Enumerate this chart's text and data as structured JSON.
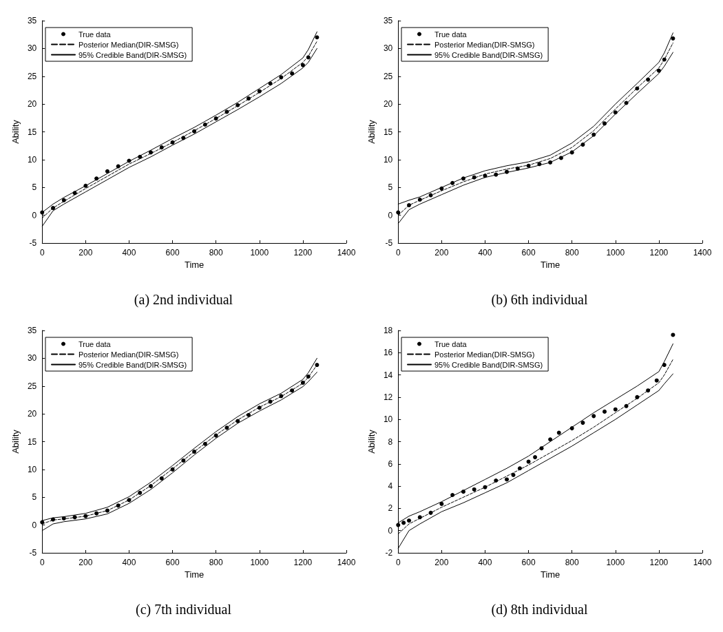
{
  "chart_data": [
    {
      "type": "line",
      "title": "(a) 2nd individual",
      "xlabel": "Time",
      "ylabel": "Ability",
      "xlim": [
        0,
        1400
      ],
      "ylim": [
        -5,
        35
      ],
      "xticks": [
        0,
        200,
        400,
        600,
        800,
        1000,
        1200,
        1400
      ],
      "yticks": [
        -5,
        0,
        5,
        10,
        15,
        20,
        25,
        30,
        35
      ],
      "grid": false,
      "legend": "top left",
      "series": [
        {
          "name": "True data",
          "type": "scatter",
          "marker": "circle",
          "color": "#000000",
          "x": [
            0,
            50,
            100,
            150,
            200,
            250,
            300,
            350,
            400,
            450,
            500,
            550,
            600,
            650,
            700,
            750,
            800,
            850,
            900,
            950,
            1000,
            1050,
            1100,
            1150,
            1200,
            1225,
            1265
          ],
          "values": [
            0.5,
            1.3,
            2.7,
            4,
            5.3,
            6.6,
            7.9,
            8.8,
            9.8,
            10.5,
            11.3,
            12.2,
            13.1,
            13.9,
            15.1,
            16.3,
            17.4,
            18.6,
            19.8,
            21,
            22.3,
            23.7,
            24.8,
            25.5,
            27,
            28.4,
            32
          ]
        },
        {
          "name": "Posterior Median(DIR-SMSG)",
          "line_style": "dashed",
          "marker": "none",
          "color": "#000000",
          "x": [
            0,
            50,
            100,
            200,
            300,
            400,
            500,
            600,
            700,
            800,
            900,
            1000,
            1100,
            1200,
            1225,
            1265
          ],
          "values": [
            -0.5,
            1.3,
            2.5,
            4.8,
            7,
            9.2,
            11.1,
            13.1,
            15.2,
            17.4,
            19.7,
            22.1,
            24.6,
            27.5,
            28.6,
            31.3
          ]
        },
        {
          "name": "95% Credible Band(DIR-SMSG)",
          "line_style": "solid",
          "marker": "none",
          "color": "#000000",
          "x": [
            0,
            50,
            100,
            200,
            300,
            400,
            500,
            600,
            700,
            800,
            900,
            1000,
            1100,
            1200,
            1225,
            1265
          ],
          "values": [
            0.5,
            2,
            3.2,
            5.3,
            7.5,
            9.7,
            11.7,
            13.8,
            15.8,
            18,
            20.3,
            22.8,
            25.3,
            28.3,
            29.8,
            33
          ]
        },
        {
          "line_style": "solid",
          "marker": "none",
          "color": "#000000",
          "x": [
            0,
            50,
            100,
            200,
            300,
            400,
            500,
            600,
            700,
            800,
            900,
            1000,
            1100,
            1200,
            1225,
            1265
          ],
          "values": [
            -2,
            0.8,
            2,
            4.2,
            6.4,
            8.6,
            10.5,
            12.6,
            14.6,
            16.8,
            19,
            21.3,
            23.7,
            26.5,
            27.5,
            30
          ]
        }
      ]
    },
    {
      "type": "line",
      "title": "(b) 6th individual",
      "xlabel": "Time",
      "ylabel": "Ability",
      "xlim": [
        0,
        1400
      ],
      "ylim": [
        -5,
        35
      ],
      "xticks": [
        0,
        200,
        400,
        600,
        800,
        1000,
        1200,
        1400
      ],
      "yticks": [
        -5,
        0,
        5,
        10,
        15,
        20,
        25,
        30,
        35
      ],
      "grid": false,
      "legend": "top left",
      "series": [
        {
          "name": "True data",
          "type": "scatter",
          "marker": "circle",
          "color": "#000000",
          "x": [
            0,
            50,
            100,
            150,
            200,
            250,
            300,
            350,
            400,
            450,
            500,
            550,
            600,
            650,
            700,
            750,
            800,
            850,
            900,
            950,
            1000,
            1050,
            1100,
            1150,
            1200,
            1225,
            1265
          ],
          "values": [
            0.5,
            1.8,
            2.8,
            3.6,
            4.8,
            5.8,
            6.6,
            6.8,
            7.1,
            7.3,
            7.8,
            8.4,
            8.9,
            9.2,
            9.5,
            10.3,
            11.3,
            12.7,
            14.5,
            16.5,
            18.5,
            20.2,
            22.8,
            24.4,
            26,
            28,
            31.8
          ]
        },
        {
          "name": "Posterior Median(DIR-SMSG)",
          "line_style": "dashed",
          "marker": "none",
          "color": "#000000",
          "x": [
            0,
            50,
            100,
            200,
            300,
            400,
            500,
            600,
            700,
            800,
            900,
            1000,
            1100,
            1200,
            1225,
            1265
          ],
          "values": [
            0,
            1.8,
            2.7,
            4.4,
            6,
            7.4,
            8.3,
            9,
            10.2,
            12.2,
            15.2,
            19.1,
            22.9,
            26.5,
            28,
            31
          ]
        },
        {
          "name": "95% Credible Band(DIR-SMSG)",
          "line_style": "solid",
          "marker": "none",
          "color": "#000000",
          "x": [
            0,
            50,
            100,
            200,
            300,
            400,
            500,
            600,
            700,
            800,
            900,
            1000,
            1100,
            1200,
            1225,
            1265
          ],
          "values": [
            2,
            2.7,
            3.3,
            5,
            6.7,
            8,
            8.9,
            9.6,
            10.8,
            13,
            16,
            20,
            23.7,
            27.5,
            29.2,
            32.8
          ]
        },
        {
          "line_style": "solid",
          "marker": "none",
          "color": "#000000",
          "x": [
            0,
            50,
            100,
            200,
            300,
            400,
            500,
            600,
            700,
            800,
            900,
            1000,
            1100,
            1200,
            1225,
            1265
          ],
          "values": [
            -1.5,
            1,
            2,
            3.7,
            5.4,
            6.8,
            7.7,
            8.5,
            9.5,
            11.4,
            14.3,
            18.2,
            21.9,
            25.5,
            26.8,
            29.3
          ]
        }
      ]
    },
    {
      "type": "line",
      "title": "(c) 7th individual",
      "xlabel": "Time",
      "ylabel": "Ability",
      "xlim": [
        0,
        1400
      ],
      "ylim": [
        -5,
        35
      ],
      "xticks": [
        0,
        200,
        400,
        600,
        800,
        1000,
        1200,
        1400
      ],
      "yticks": [
        -5,
        0,
        5,
        10,
        15,
        20,
        25,
        30,
        35
      ],
      "grid": false,
      "legend": "top left",
      "series": [
        {
          "name": "True data",
          "type": "scatter",
          "marker": "circle",
          "color": "#000000",
          "x": [
            0,
            50,
            100,
            150,
            200,
            250,
            300,
            350,
            400,
            450,
            500,
            550,
            600,
            650,
            700,
            750,
            800,
            850,
            900,
            950,
            1000,
            1050,
            1100,
            1150,
            1200,
            1225,
            1265
          ],
          "values": [
            0.5,
            1,
            1.2,
            1.4,
            1.6,
            2.1,
            2.6,
            3.5,
            4.5,
            5.8,
            7,
            8.4,
            10,
            11.6,
            13.2,
            14.6,
            16.1,
            17.5,
            18.7,
            19.8,
            21.1,
            22.2,
            23.2,
            24.2,
            25.6,
            26.7,
            28.8
          ]
        },
        {
          "name": "Posterior Median(DIR-SMSG)",
          "line_style": "dashed",
          "marker": "none",
          "color": "#000000",
          "x": [
            0,
            50,
            100,
            200,
            300,
            400,
            500,
            600,
            700,
            800,
            900,
            1000,
            1100,
            1200,
            1225,
            1265
          ],
          "values": [
            0.2,
            0.9,
            1.1,
            1.6,
            2.6,
            4.5,
            7.1,
            10.1,
            13.2,
            16.2,
            18.9,
            21.2,
            23.1,
            25.5,
            26.6,
            28.8
          ]
        },
        {
          "name": "95% Credible Band(DIR-SMSG)",
          "line_style": "solid",
          "marker": "none",
          "color": "#000000",
          "x": [
            0,
            50,
            100,
            200,
            300,
            400,
            500,
            600,
            700,
            800,
            900,
            1000,
            1100,
            1200,
            1225,
            1265
          ],
          "values": [
            0.8,
            1.3,
            1.5,
            2.1,
            3.2,
            5.1,
            7.7,
            10.7,
            13.8,
            16.8,
            19.5,
            21.8,
            23.7,
            26.2,
            27.4,
            30
          ]
        },
        {
          "line_style": "solid",
          "marker": "none",
          "color": "#000000",
          "x": [
            0,
            50,
            100,
            200,
            300,
            400,
            500,
            600,
            700,
            800,
            900,
            1000,
            1100,
            1200,
            1225,
            1265
          ],
          "values": [
            -1,
            0.2,
            0.6,
            1.1,
            2,
            3.9,
            6.4,
            9.4,
            12.6,
            15.6,
            18.3,
            20.5,
            22.5,
            24.9,
            25.8,
            27.5
          ]
        }
      ]
    },
    {
      "type": "line",
      "title": "(d) 8th individual",
      "xlabel": "Time",
      "ylabel": "Ability",
      "xlim": [
        0,
        1400
      ],
      "ylim": [
        -2,
        18
      ],
      "xticks": [
        0,
        200,
        400,
        600,
        800,
        1000,
        1200,
        1400
      ],
      "yticks": [
        -2,
        0,
        2,
        4,
        6,
        8,
        10,
        12,
        14,
        16,
        18
      ],
      "grid": false,
      "legend": "top left",
      "series": [
        {
          "name": "True data",
          "type": "scatter",
          "marker": "circle",
          "color": "#000000",
          "x": [
            0,
            25,
            50,
            100,
            150,
            200,
            250,
            300,
            350,
            400,
            450,
            500,
            530,
            560,
            600,
            630,
            660,
            700,
            740,
            800,
            850,
            900,
            950,
            1000,
            1050,
            1100,
            1150,
            1190,
            1225,
            1265
          ],
          "values": [
            0.5,
            0.7,
            0.9,
            1.2,
            1.6,
            2.4,
            3.2,
            3.5,
            3.7,
            3.9,
            4.5,
            4.6,
            5,
            5.6,
            6.2,
            6.6,
            7.4,
            8.2,
            8.8,
            9.2,
            9.7,
            10.3,
            10.7,
            10.9,
            11.2,
            12,
            12.6,
            13.5,
            14.9,
            17.6
          ]
        },
        {
          "name": "Posterior Median(DIR-SMSG)",
          "line_style": "dashed",
          "marker": "none",
          "color": "#000000",
          "x": [
            0,
            50,
            100,
            200,
            300,
            400,
            500,
            600,
            700,
            800,
            900,
            1000,
            1100,
            1200,
            1225,
            1265
          ],
          "values": [
            -0.3,
            0.6,
            1.1,
            2.1,
            3,
            3.9,
            4.9,
            5.9,
            7,
            8.1,
            9.3,
            10.6,
            11.9,
            13.3,
            14,
            15.4
          ]
        },
        {
          "name": "95% Credible Band(DIR-SMSG)",
          "line_style": "solid",
          "marker": "none",
          "color": "#000000",
          "x": [
            0,
            50,
            100,
            200,
            300,
            400,
            500,
            600,
            700,
            800,
            900,
            1000,
            1100,
            1200,
            1225,
            1265
          ],
          "values": [
            0.7,
            1.3,
            1.7,
            2.6,
            3.6,
            4.6,
            5.6,
            6.7,
            8,
            9.3,
            10.6,
            11.8,
            13,
            14.3,
            15.2,
            16.8
          ]
        },
        {
          "line_style": "solid",
          "marker": "none",
          "color": "#000000",
          "x": [
            0,
            50,
            100,
            200,
            300,
            400,
            500,
            600,
            700,
            800,
            900,
            1000,
            1100,
            1200,
            1225,
            1265
          ],
          "values": [
            -1.6,
            0,
            0.6,
            1.7,
            2.5,
            3.4,
            4.3,
            5.4,
            6.5,
            7.6,
            8.8,
            10,
            11.3,
            12.6,
            13.2,
            14.1
          ]
        }
      ]
    }
  ]
}
